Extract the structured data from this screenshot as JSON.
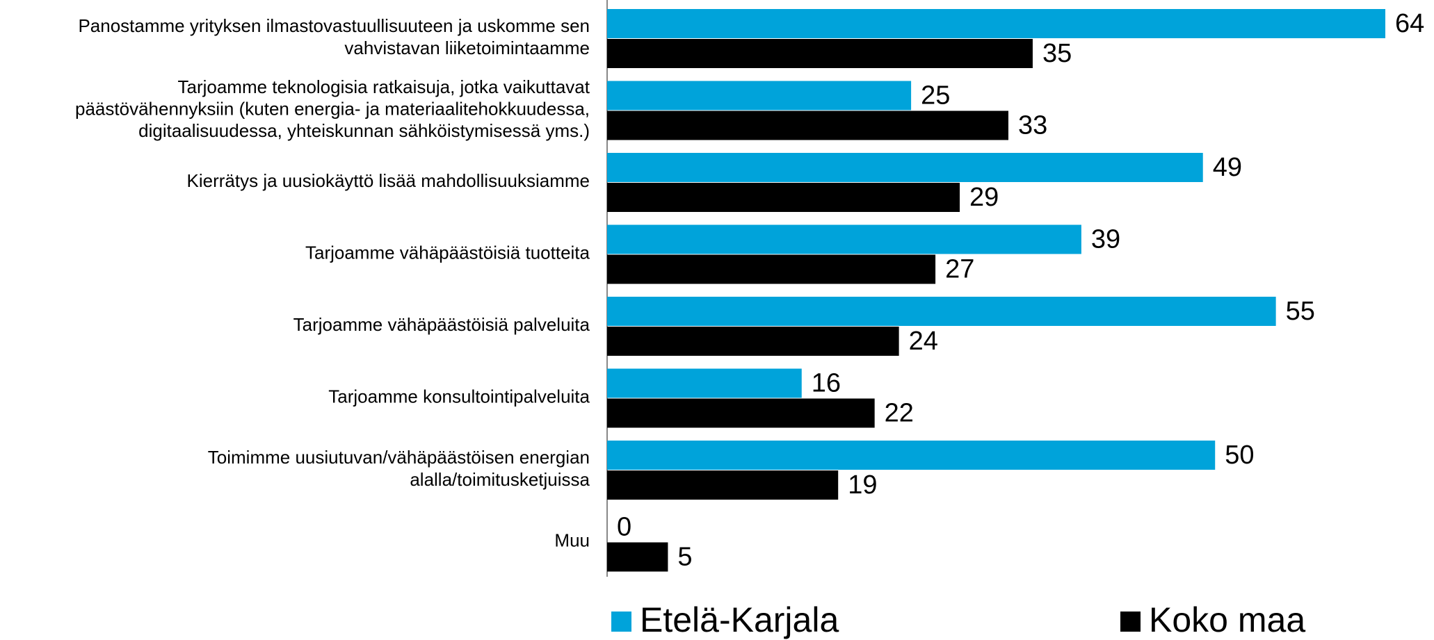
{
  "chart_data": {
    "type": "hbar",
    "categories": [
      "Panostamme yrityksen ilmastovastuullisuuteen ja uskomme sen\nvahvistavan liiketoimintaamme",
      "Tarjoamme teknologisia ratkaisuja, jotka vaikuttavat\npäästövähennyksiin (kuten energia- ja materiaalitehokkuudessa,\ndigitaalisuudessa, yhteiskunnan sähköistymisessä yms.)",
      "Kierrätys ja uusiokäyttö lisää mahdollisuuksiamme",
      "Tarjoamme vähäpäästöisiä tuotteita",
      "Tarjoamme vähäpäästöisiä palveluita",
      "Tarjoamme konsultointipalveluita",
      "Toimimme uusiutuvan/vähäpäästöisen energian\nalalla/toimitusketjuissa",
      "Muu"
    ],
    "series": [
      {
        "name": "Etelä-Karjala",
        "color": "#00a3da",
        "values": [
          64,
          25,
          49,
          39,
          55,
          16,
          50,
          0
        ]
      },
      {
        "name": "Koko maa",
        "color": "#000000",
        "values": [
          35,
          33,
          29,
          27,
          24,
          22,
          19,
          5
        ]
      }
    ]
  }
}
